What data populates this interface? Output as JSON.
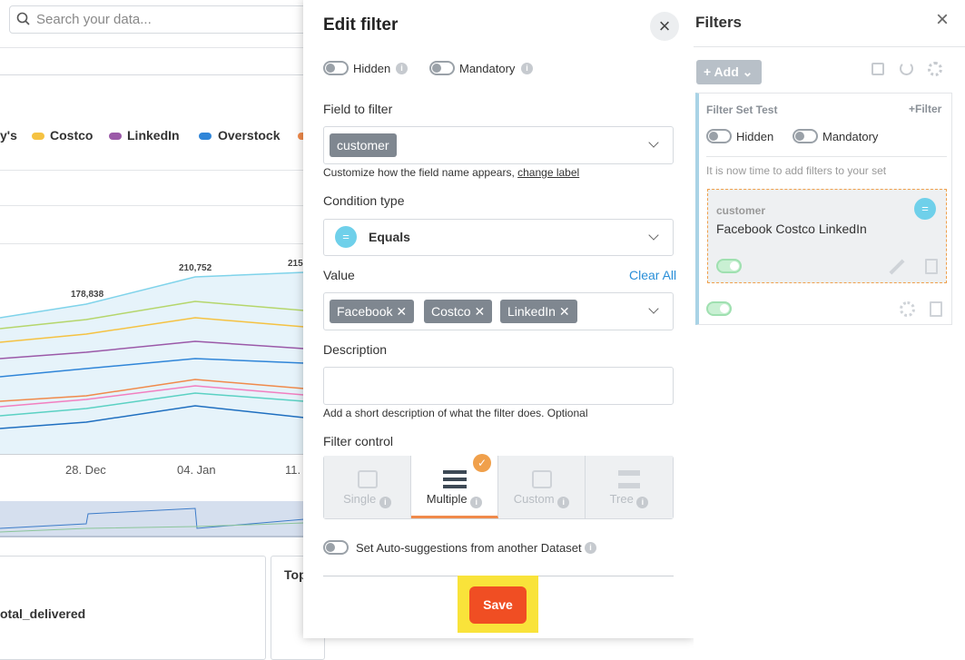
{
  "dashboard": {
    "search_placeholder": "Search your data...",
    "legend": [
      "y's",
      "Costco",
      "LinkedIn",
      "Overstock"
    ],
    "data_labels": [
      "178,838",
      "210,752",
      "215"
    ],
    "x_labels": [
      "28. Dec",
      "04. Jan",
      "11."
    ],
    "panel_labels": [
      "otal_delivered",
      "Top"
    ]
  },
  "edit_filter": {
    "title": "Edit filter",
    "hidden_label": "Hidden",
    "mandatory_label": "Mandatory",
    "field_label": "Field to filter",
    "field_value": "customer",
    "field_help": "Customize how the field name appears,",
    "change_label": "change label",
    "condition_label": "Condition type",
    "condition_value": "Equals",
    "value_label": "Value",
    "clear_all": "Clear All",
    "values": [
      "Facebook",
      "Costco",
      "LinkedIn"
    ],
    "description_label": "Description",
    "description_help": "Add a short description of what the filter does. Optional",
    "control_label": "Filter control",
    "controls": [
      "Single",
      "Multiple",
      "Custom",
      "Tree"
    ],
    "auto_suggest": "Set Auto-suggestions from another Dataset",
    "save": "Save"
  },
  "filters_panel": {
    "title": "Filters",
    "add": "+ Add",
    "set_name": "Filter Set Test",
    "add_filter": "+Filter",
    "hidden_label": "Hidden",
    "mandatory_label": "Mandatory",
    "hint": "It is now time to add filters to your set",
    "filter": {
      "field": "customer",
      "values": "Facebook Costco LinkedIn"
    }
  }
}
